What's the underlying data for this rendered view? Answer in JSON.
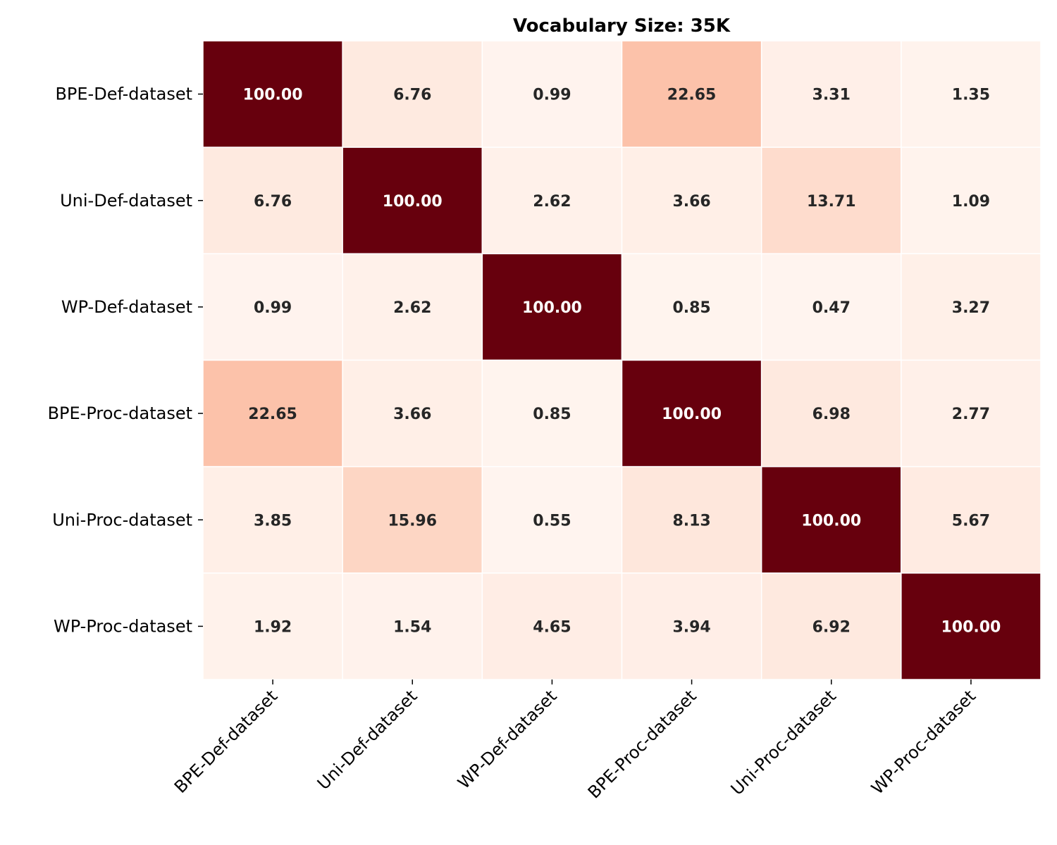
{
  "chart_data": {
    "type": "heatmap",
    "title": "Vocabulary Size: 35K",
    "xlabel": "",
    "ylabel": "",
    "row_labels": [
      "BPE-Def-dataset",
      "Uni-Def-dataset",
      "WP-Def-dataset",
      "BPE-Proc-dataset",
      "Uni-Proc-dataset",
      "WP-Proc-dataset"
    ],
    "col_labels": [
      "BPE-Def-dataset",
      "Uni-Def-dataset",
      "WP-Def-dataset",
      "BPE-Proc-dataset",
      "Uni-Proc-dataset",
      "WP-Proc-dataset"
    ],
    "values": [
      [
        100.0,
        6.76,
        0.99,
        22.65,
        3.31,
        1.35
      ],
      [
        6.76,
        100.0,
        2.62,
        3.66,
        13.71,
        1.09
      ],
      [
        0.99,
        2.62,
        100.0,
        0.85,
        0.47,
        3.27
      ],
      [
        22.65,
        3.66,
        0.85,
        100.0,
        6.98,
        2.77
      ],
      [
        3.85,
        15.96,
        0.55,
        8.13,
        100.0,
        5.67
      ],
      [
        1.92,
        1.54,
        4.65,
        3.94,
        6.92,
        100.0
      ]
    ],
    "value_format": "2 decimals",
    "colormap": "Reds",
    "colormap_stops": [
      "#fff5f0",
      "#fee0d2",
      "#fcbba1",
      "#fc9272",
      "#fb6a4a",
      "#ef3b2c",
      "#cb181d",
      "#a50f15",
      "#67000d"
    ],
    "vrange": [
      0,
      100
    ],
    "colorbar": false,
    "grid": false
  }
}
